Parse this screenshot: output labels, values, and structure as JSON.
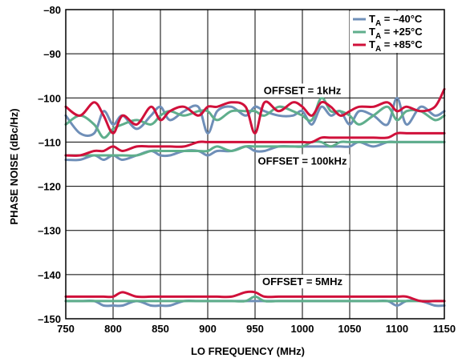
{
  "chart_data": {
    "type": "line",
    "xlabel": "LO FREQUENCY (MHz)",
    "ylabel": "PHASE NOISE (dBc/Hz)",
    "xlim": [
      750,
      1150
    ],
    "ylim": [
      -150,
      -80
    ],
    "x_ticks": [
      "750",
      "800",
      "850",
      "900",
      "950",
      "1000",
      "1050",
      "1100",
      "1150"
    ],
    "y_ticks": [
      "–80",
      "–90",
      "–100",
      "–110",
      "–120",
      "–130",
      "–140",
      "–150"
    ],
    "grid": true,
    "legend_position": "top-right",
    "legend": [
      {
        "key": "m40",
        "prefix": "T",
        "sub": "A",
        "suffix": " = –40°C",
        "color": "#6f8fb8"
      },
      {
        "key": "p25",
        "prefix": "T",
        "sub": "A",
        "suffix": " = +25°C",
        "color": "#5fae8c"
      },
      {
        "key": "p85",
        "prefix": "T",
        "sub": "A",
        "suffix": " = +85°C",
        "color": "#d0103a"
      }
    ],
    "annotations": [
      {
        "key": "offset_1k",
        "text": "OFFSET = 1kHz",
        "at": [
          1000,
          -98.2
        ]
      },
      {
        "key": "offset_100k",
        "text": "OFFSET = 100kHz",
        "at": [
          1000,
          -114.2
        ]
      },
      {
        "key": "offset_5m",
        "text": "OFFSET = 5MHz",
        "at": [
          1000,
          -141.5
        ]
      }
    ],
    "x": [
      750,
      765,
      780,
      790,
      800,
      810,
      825,
      840,
      850,
      860,
      875,
      890,
      900,
      910,
      925,
      940,
      950,
      960,
      975,
      990,
      1000,
      1010,
      1020,
      1030,
      1040,
      1050,
      1060,
      1075,
      1090,
      1100,
      1110,
      1125,
      1140,
      1150
    ],
    "groups": [
      {
        "offset": "1kHz",
        "series": [
          {
            "key": "m40",
            "name": "TA = –40°C",
            "color": "#6f8fb8",
            "values": [
              -104,
              -108,
              -108,
              -103,
              -106,
              -104,
              -107,
              -104,
              -102,
              -105,
              -103,
              -102,
              -108,
              -103,
              -102,
              -104,
              -102,
              -103,
              -104,
              -104,
              -103,
              -106,
              -102,
              -104,
              -103,
              -106,
              -103,
              -104,
              -106,
              -100,
              -106,
              -102,
              -104,
              -103
            ]
          },
          {
            "key": "p25",
            "name": "TA = +25°C",
            "color": "#5fae8c",
            "values": [
              -106,
              -104,
              -106,
              -109,
              -107,
              -106,
              -105,
              -106,
              -104,
              -103,
              -104,
              -103,
              -103,
              -105,
              -103,
              -103,
              -103,
              -104,
              -102,
              -103,
              -104,
              -105,
              -100,
              -103,
              -103,
              -104,
              -106,
              -104,
              -102,
              -105,
              -103,
              -103,
              -105,
              -104
            ]
          },
          {
            "key": "p85",
            "name": "TA = +85°C",
            "color": "#d0103a",
            "values": [
              -102,
              -104,
              -101,
              -104,
              -108,
              -104,
              -106,
              -102,
              -105,
              -103,
              -102,
              -104,
              -102,
              -102,
              -101,
              -102,
              -108,
              -101,
              -103,
              -101,
              -102,
              -104,
              -101,
              -102,
              -104,
              -103,
              -102,
              -102,
              -101,
              -103,
              -102,
              -103,
              -102,
              -98
            ]
          }
        ]
      },
      {
        "offset": "100kHz",
        "series": [
          {
            "key": "m40",
            "name": "TA = –40°C",
            "color": "#6f8fb8",
            "values": [
              -114,
              -114,
              -113,
              -114,
              -113,
              -114,
              -113,
              -112,
              -113,
              -113,
              -112,
              -112,
              -113,
              -112,
              -112,
              -111,
              -112,
              -112,
              -111,
              -111,
              -111,
              -111,
              -111,
              -111,
              -111,
              -111,
              -110,
              -111,
              -110,
              -110,
              -110,
              -110,
              -110,
              -110
            ]
          },
          {
            "key": "p25",
            "name": "TA = +25°C",
            "color": "#5fae8c",
            "values": [
              -113,
              -113,
              -113,
              -113,
              -113,
              -113,
              -113,
              -112,
              -112,
              -112,
              -112,
              -112,
              -112,
              -111,
              -112,
              -111,
              -111,
              -111,
              -111,
              -111,
              -111,
              -110,
              -110,
              -111,
              -110,
              -110,
              -110,
              -110,
              -110,
              -110,
              -110,
              -110,
              -110,
              -110
            ]
          },
          {
            "key": "p85",
            "name": "TA = +85°C",
            "color": "#d0103a",
            "values": [
              -113,
              -113,
              -112,
              -112,
              -111,
              -112,
              -111,
              -111,
              -111,
              -111,
              -111,
              -110,
              -110,
              -110,
              -110,
              -110,
              -110,
              -110,
              -110,
              -110,
              -110,
              -110,
              -109,
              -109,
              -109,
              -109,
              -109,
              -109,
              -109,
              -108,
              -108,
              -108,
              -108,
              -108
            ]
          }
        ]
      },
      {
        "offset": "5MHz",
        "series": [
          {
            "key": "m40",
            "name": "TA = –40°C",
            "color": "#6f8fb8",
            "values": [
              -146,
              -146,
              -146,
              -147,
              -147,
              -147,
              -146,
              -147,
              -147,
              -147,
              -146,
              -146,
              -146,
              -146,
              -146,
              -146,
              -146,
              -146,
              -146,
              -146,
              -146,
              -146,
              -146,
              -146,
              -146,
              -146,
              -146,
              -146,
              -146,
              -147,
              -146,
              -146,
              -147,
              -147
            ]
          },
          {
            "key": "p25",
            "name": "TA = +25°C",
            "color": "#5fae8c",
            "values": [
              -146,
              -146,
              -146,
              -146,
              -146,
              -146,
              -146,
              -146,
              -146,
              -146,
              -146,
              -146,
              -146,
              -146,
              -146,
              -146,
              -145,
              -146,
              -146,
              -146,
              -146,
              -146,
              -146,
              -146,
              -146,
              -146,
              -146,
              -146,
              -146,
              -146,
              -146,
              -146,
              -146,
              -146
            ]
          },
          {
            "key": "p85",
            "name": "TA = +85°C",
            "color": "#d0103a",
            "values": [
              -145,
              -145,
              -145,
              -145,
              -145,
              -144,
              -145,
              -145,
              -145,
              -145,
              -145,
              -145,
              -145,
              -145,
              -145,
              -144,
              -144,
              -145,
              -145,
              -145,
              -145,
              -145,
              -145,
              -145,
              -145,
              -145,
              -145,
              -145,
              -145,
              -145,
              -145,
              -146,
              -146,
              -146
            ]
          }
        ]
      }
    ]
  }
}
